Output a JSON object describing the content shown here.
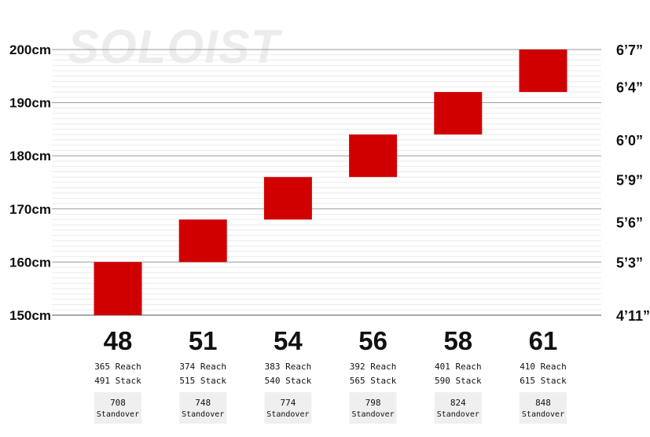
{
  "chart_data": {
    "type": "size-chart",
    "watermark": "SOLOIST",
    "y_unit": "cm",
    "ylim": [
      150,
      200
    ],
    "y_ticks_cm": [
      "150cm",
      "160cm",
      "170cm",
      "180cm",
      "190cm",
      "200cm"
    ],
    "y_ticks_imperial": [
      "4’11”",
      "5’3”",
      "5’6”",
      "5’9”",
      "6’0”",
      "6’4”",
      "6’7”"
    ],
    "y_ticks_imperial_cm": [
      150,
      160,
      167.5,
      175.5,
      183,
      193,
      200
    ],
    "major_gridlines_cm": [
      150,
      160,
      170,
      180,
      190,
      200
    ],
    "minor_gridline_step_cm": 1,
    "bar_color": "#d10000",
    "sizes": [
      {
        "size": "48",
        "height_min": 150,
        "height_max": 160,
        "reach": "365 Reach",
        "stack": "491 Stack",
        "standover": "708",
        "standover_label": "Standover"
      },
      {
        "size": "51",
        "height_min": 160,
        "height_max": 168,
        "reach": "374 Reach",
        "stack": "515 Stack",
        "standover": "748",
        "standover_label": "Standover"
      },
      {
        "size": "54",
        "height_min": 168,
        "height_max": 176,
        "reach": "383 Reach",
        "stack": "540 Stack",
        "standover": "774",
        "standover_label": "Standover"
      },
      {
        "size": "56",
        "height_min": 176,
        "height_max": 184,
        "reach": "392 Reach",
        "stack": "565 Stack",
        "standover": "798",
        "standover_label": "Standover"
      },
      {
        "size": "58",
        "height_min": 184,
        "height_max": 192,
        "reach": "401 Reach",
        "stack": "590 Stack",
        "standover": "824",
        "standover_label": "Standover"
      },
      {
        "size": "61",
        "height_min": 192,
        "height_max": 200,
        "reach": "410 Reach",
        "stack": "615 Stack",
        "standover": "848",
        "standover_label": "Standover"
      }
    ]
  }
}
